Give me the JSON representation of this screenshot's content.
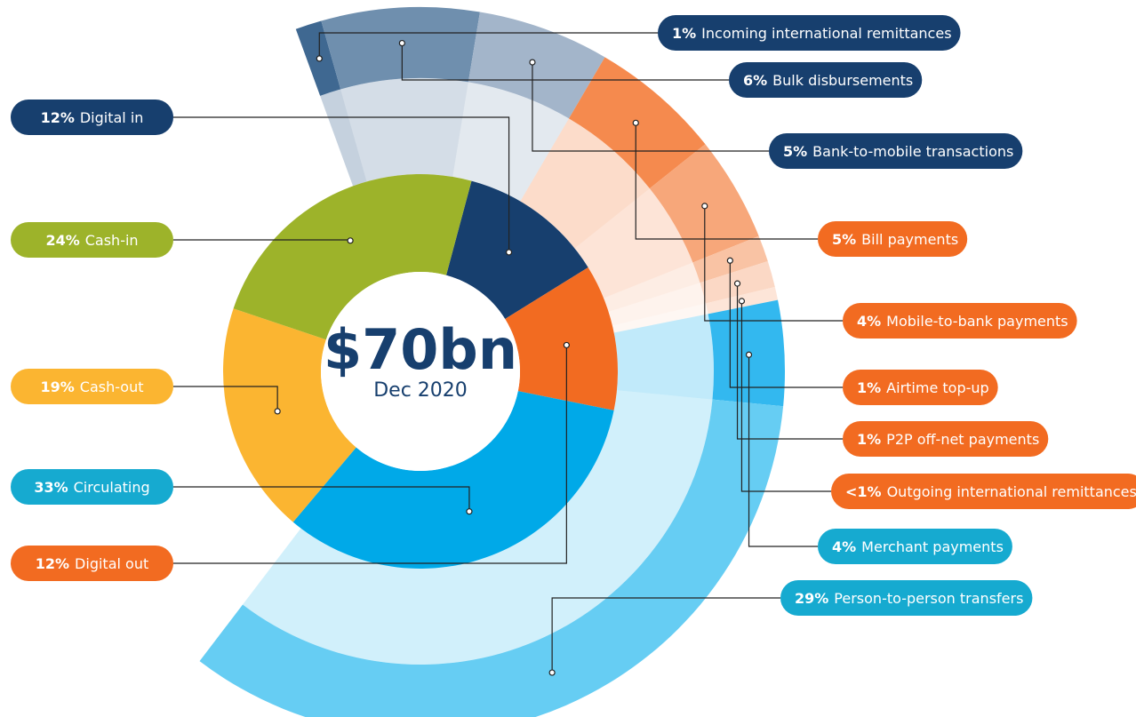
{
  "chart_data": {
    "type": "sunburst",
    "center_title": "$70bn",
    "center_subtitle": "Dec 2020",
    "inner": {
      "categories": [
        "Digital in",
        "Digital out",
        "Circulating",
        "Cash-out",
        "Cash-in"
      ],
      "values": [
        12,
        12,
        33,
        19,
        24
      ],
      "value_labels": [
        "12%",
        "12%",
        "33%",
        "19%",
        "24%"
      ],
      "colors": [
        "#173f6e",
        "#f26b21",
        "#00a9e8",
        "#fbb531",
        "#9db32a"
      ],
      "label_colors": [
        "#173f6e",
        "#f26b21",
        "#16aad0",
        "#fbb531",
        "#9db32a"
      ]
    },
    "outer": {
      "categories": [
        "Incoming international remittances",
        "Bulk disbursements",
        "Bank-to-mobile transactions",
        "Bill payments",
        "Mobile-to-bank payments",
        "Airtime top-up",
        "P2P off-net payments",
        "Outgoing international remittances",
        "Merchant payments",
        "Person-to-person transfers"
      ],
      "values": [
        1,
        6,
        5,
        5,
        4,
        1,
        1,
        0.5,
        4,
        29
      ],
      "value_labels": [
        "1%",
        "6%",
        "5%",
        "5%",
        "4%",
        "1%",
        "1%",
        "<1%",
        "4%",
        "29%"
      ],
      "colors": [
        "#3f6891",
        "#6f8fae",
        "#a3b5ca",
        "#f58a4e",
        "#f7a77a",
        "#f9c3a4",
        "#fbd8c5",
        "#fde5d8",
        "#33b8ef",
        "#66cdf3"
      ],
      "label_colors": [
        "#173f6e",
        "#173f6e",
        "#173f6e",
        "#f26b21",
        "#f26b21",
        "#f26b21",
        "#f26b21",
        "#f26b21",
        "#16aad0",
        "#16aad0"
      ]
    }
  }
}
